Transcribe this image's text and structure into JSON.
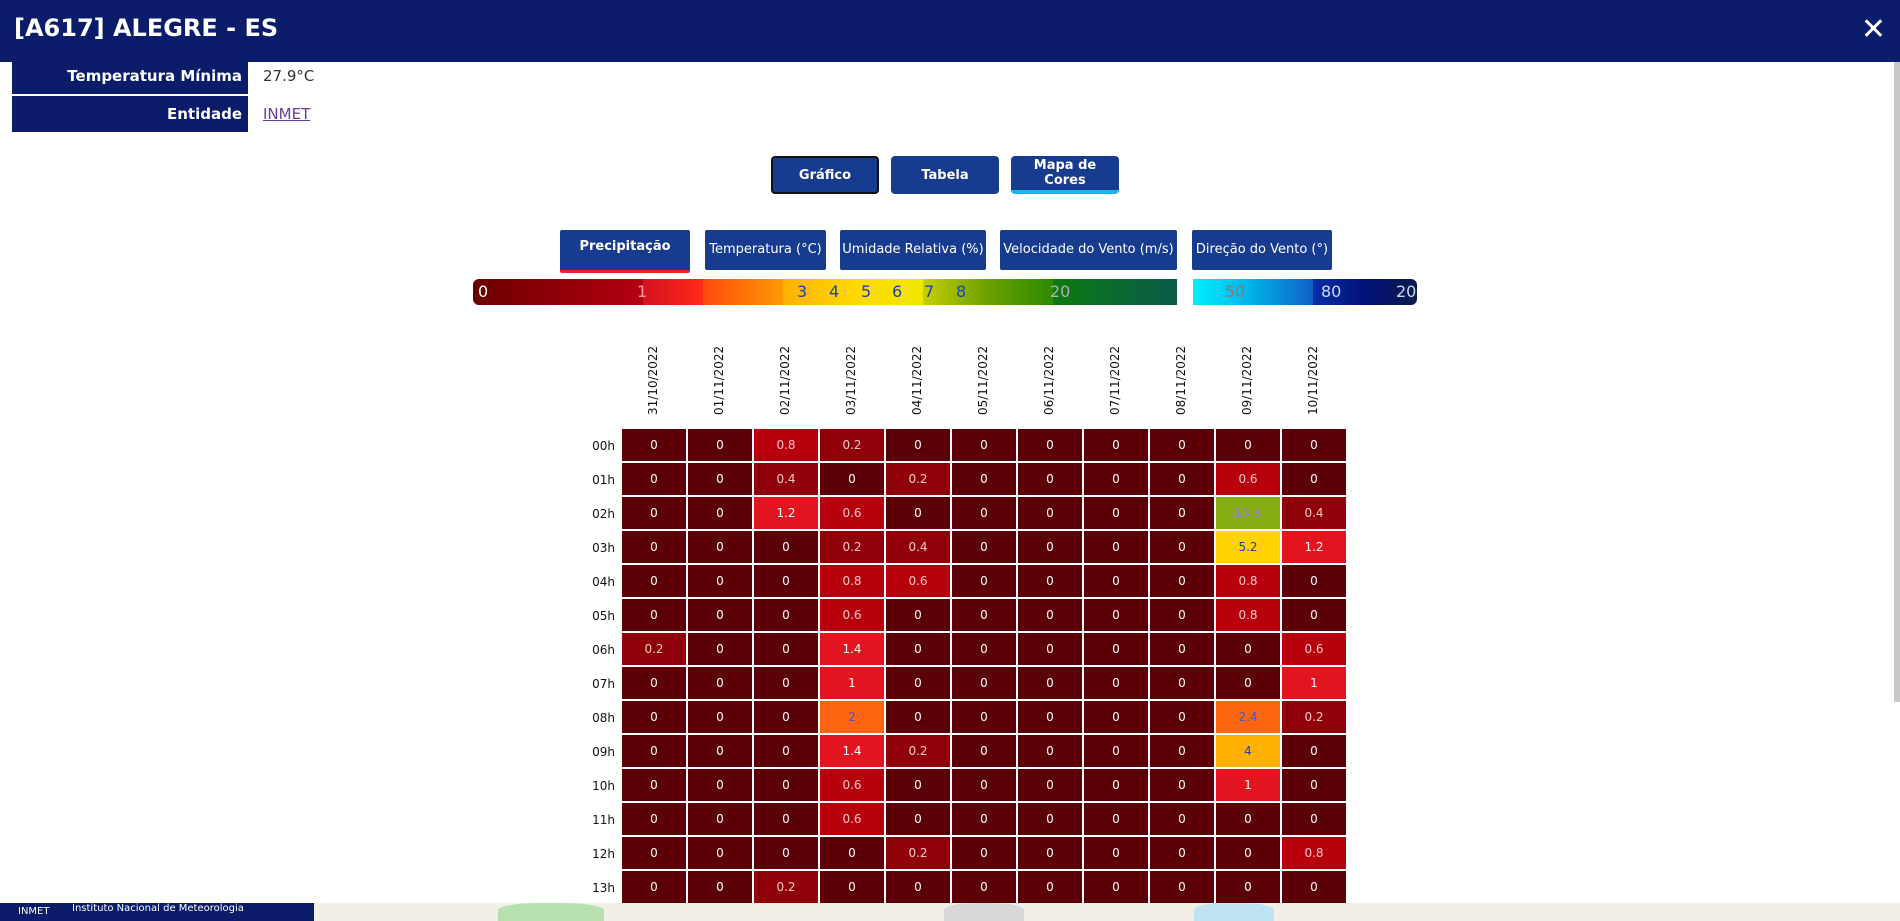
{
  "header": {
    "title": "[A617] ALEGRE - ES",
    "close_label": "✕"
  },
  "info": [
    {
      "label": "Temperatura Mínima",
      "value": "27.9°C",
      "link": false
    },
    {
      "label": "Entidade",
      "value": "INMET",
      "link": true
    }
  ],
  "view_buttons": [
    "Gráfico",
    "Tabela",
    "Mapa de Cores"
  ],
  "variable_tabs": [
    "Precipitação (mm)",
    "Temperatura (°C)",
    "Umidade Relativa (%)",
    "Velocidade do Vento (m/s)",
    "Direção do Vento (°)"
  ],
  "scale_labels": [
    "0",
    "1",
    "3",
    "4",
    "5",
    "6",
    "7",
    "8",
    "20",
    "50",
    "80",
    "200"
  ],
  "chart_data": {
    "type": "heatmap",
    "x": [
      "31/10/2022",
      "01/11/2022",
      "02/11/2022",
      "03/11/2022",
      "04/11/2022",
      "05/11/2022",
      "06/11/2022",
      "07/11/2022",
      "08/11/2022",
      "09/11/2022",
      "10/11/2022"
    ],
    "y": [
      "00h",
      "01h",
      "02h",
      "03h",
      "04h",
      "05h",
      "06h",
      "07h",
      "08h",
      "09h",
      "10h",
      "11h",
      "12h",
      "13h"
    ],
    "values": [
      [
        "0",
        "0",
        "0.8",
        "0.2",
        "0",
        "0",
        "0",
        "0",
        "0",
        "0",
        "0"
      ],
      [
        "0",
        "0",
        "0.4",
        "0",
        "0.2",
        "0",
        "0",
        "0",
        "0",
        "0.6",
        "0"
      ],
      [
        "0",
        "0",
        "1.2",
        "0.6",
        "0",
        "0",
        "0",
        "0",
        "0",
        "13.8",
        "0.4"
      ],
      [
        "0",
        "0",
        "0",
        "0.2",
        "0.4",
        "0",
        "0",
        "0",
        "0",
        "5.2",
        "1.2"
      ],
      [
        "0",
        "0",
        "0",
        "0.8",
        "0.6",
        "0",
        "0",
        "0",
        "0",
        "0.8",
        "0"
      ],
      [
        "0",
        "0",
        "0",
        "0.6",
        "0",
        "0",
        "0",
        "0",
        "0",
        "0.8",
        "0"
      ],
      [
        "0.2",
        "0",
        "0",
        "1.4",
        "0",
        "0",
        "0",
        "0",
        "0",
        "0",
        "0.6"
      ],
      [
        "0",
        "0",
        "0",
        "1",
        "0",
        "0",
        "0",
        "0",
        "0",
        "0",
        "1"
      ],
      [
        "0",
        "0",
        "0",
        "2",
        "0",
        "0",
        "0",
        "0",
        "0",
        "2.4",
        "0.2"
      ],
      [
        "0",
        "0",
        "0",
        "1.4",
        "0.2",
        "0",
        "0",
        "0",
        "0",
        "4",
        "0"
      ],
      [
        "0",
        "0",
        "0",
        "0.6",
        "0",
        "0",
        "0",
        "0",
        "0",
        "1",
        "0"
      ],
      [
        "0",
        "0",
        "0",
        "0.6",
        "0",
        "0",
        "0",
        "0",
        "0",
        "0",
        "0"
      ],
      [
        "0",
        "0",
        "0",
        "0",
        "0.2",
        "0",
        "0",
        "0",
        "0",
        "0",
        "0.8"
      ],
      [
        "0",
        "0",
        "0.2",
        "0",
        "0",
        "0",
        "0",
        "0",
        "0",
        "0",
        "0"
      ]
    ]
  },
  "footer": {
    "left": "INMET",
    "right": "Instituto Nacional de Meteorologia"
  }
}
